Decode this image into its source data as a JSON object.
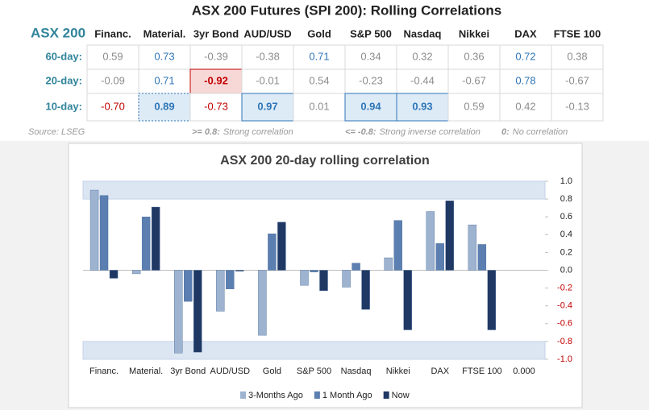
{
  "table": {
    "title": "ASX 200 Futures (SPI 200): Rolling Correlations",
    "corner": "ASX 200",
    "columns": [
      "Financ.",
      "Material.",
      "3yr Bond",
      "AUD/USD",
      "Gold",
      "S&P 500",
      "Nasdaq",
      "Nikkei",
      "DAX",
      "FTSE 100"
    ],
    "rows": [
      {
        "label": "60-day:",
        "cells": [
          "0.59",
          "0.73",
          "-0.39",
          "-0.38",
          "0.71",
          "0.34",
          "0.32",
          "0.36",
          "0.72",
          "0.38"
        ]
      },
      {
        "label": "20-day:",
        "cells": [
          "-0.09",
          "0.71",
          "-0.92",
          "-0.01",
          "0.54",
          "-0.23",
          "-0.44",
          "-0.67",
          "0.78",
          "-0.67"
        ]
      },
      {
        "label": "10-day:",
        "cells": [
          "-0.70",
          "0.89",
          "-0.73",
          "0.97",
          "0.01",
          "0.94",
          "0.93",
          "0.59",
          "0.42",
          "-0.13"
        ]
      }
    ],
    "source": "Source: LSEG",
    "notes": [
      {
        "key": ">= 0.8:",
        "text": "Strong correlation"
      },
      {
        "key": "<= -0.8:",
        "text": "Strong inverse correlation"
      },
      {
        "key": "0:",
        "text": "No correlation"
      }
    ]
  },
  "chart_data": {
    "type": "bar",
    "title": "ASX 200 20-day rolling correlation",
    "categories": [
      "Financ.",
      "Material.",
      "3yr Bond",
      "AUD/USD",
      "Gold",
      "S&P 500",
      "Nasdaq",
      "Nikkei",
      "DAX",
      "FTSE 100",
      "0.000"
    ],
    "series": [
      {
        "name": "3-Months Ago",
        "color": "#9db3d0",
        "values": [
          0.9,
          -0.04,
          -0.93,
          -0.46,
          -0.73,
          -0.17,
          -0.19,
          0.14,
          0.66,
          0.51,
          null
        ]
      },
      {
        "name": "1 Month Ago",
        "color": "#5b7fb0",
        "values": [
          0.84,
          0.6,
          -0.35,
          -0.21,
          0.41,
          -0.02,
          0.08,
          0.56,
          0.3,
          0.29,
          null
        ]
      },
      {
        "name": "Now",
        "color": "#1f3864",
        "values": [
          -0.09,
          0.71,
          -0.92,
          -0.01,
          0.54,
          -0.23,
          -0.44,
          -0.67,
          0.78,
          -0.67,
          null
        ]
      }
    ],
    "ylim": [
      -1.0,
      1.0
    ],
    "yticks": [
      {
        "value": 1.0,
        "label": "1.0"
      },
      {
        "value": 0.8,
        "label": "0.8"
      },
      {
        "value": 0.6,
        "label": "0.6"
      },
      {
        "value": 0.4,
        "label": "0.4"
      },
      {
        "value": 0.2,
        "label": "0.2"
      },
      {
        "value": 0.0,
        "label": "0.0"
      },
      {
        "value": -0.2,
        "label": "-0.2"
      },
      {
        "value": -0.4,
        "label": "-0.4"
      },
      {
        "value": -0.6,
        "label": "-0.6"
      },
      {
        "value": -0.8,
        "label": "-0.8"
      },
      {
        "value": -1.0,
        "label": "-1.0"
      }
    ],
    "bands": [
      [
        0.8,
        1.0
      ],
      [
        -1.0,
        -0.8
      ]
    ],
    "band_color": "#dce6f2",
    "legend": "bottom"
  }
}
